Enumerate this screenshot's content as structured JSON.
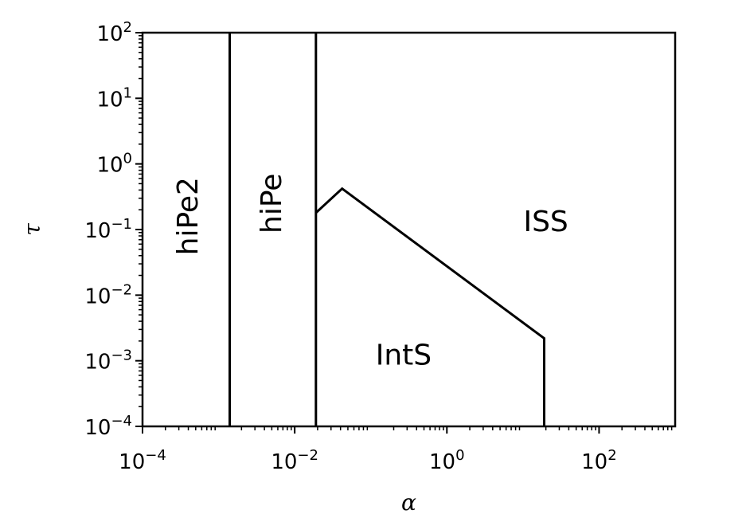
{
  "chart_data": {
    "type": "line",
    "title": "",
    "xlabel": "α",
    "ylabel": "τ",
    "xscale": "log",
    "yscale": "log",
    "xlim": [
      0.0001,
      1000
    ],
    "ylim": [
      0.0001,
      100
    ],
    "grid": false,
    "x_ticks": [
      {
        "base": "10",
        "exp": "−4",
        "value": 0.0001
      },
      {
        "base": "10",
        "exp": "−2",
        "value": 0.01
      },
      {
        "base": "10",
        "exp": "0",
        "value": 1
      },
      {
        "base": "10",
        "exp": "2",
        "value": 100
      }
    ],
    "y_ticks": [
      {
        "base": "10",
        "exp": "−4",
        "value": 0.0001
      },
      {
        "base": "10",
        "exp": "−3",
        "value": 0.001
      },
      {
        "base": "10",
        "exp": "−2",
        "value": 0.01
      },
      {
        "base": "10",
        "exp": "−1",
        "value": 0.1
      },
      {
        "base": "10",
        "exp": "0",
        "value": 1
      },
      {
        "base": "10",
        "exp": "1",
        "value": 10
      },
      {
        "base": "10",
        "exp": "2",
        "value": 100
      }
    ],
    "series": [
      {
        "points": [
          [
            0.0014,
            0.0001
          ],
          [
            0.0014,
            100
          ]
        ]
      },
      {
        "points": [
          [
            0.019,
            0.0001
          ],
          [
            0.019,
            100
          ]
        ]
      },
      {
        "points": [
          [
            0.019,
            0.18
          ],
          [
            0.042,
            0.42
          ],
          [
            19,
            0.0022
          ],
          [
            19,
            0.0001
          ]
        ]
      }
    ],
    "annotations": [
      {
        "text": "hiPe2",
        "x": 0.0004,
        "y": 0.16,
        "rotation": -90
      },
      {
        "text": "hiPe",
        "x": 0.005,
        "y": 0.25,
        "rotation": -90
      },
      {
        "text": "IntS",
        "x": 0.27,
        "y": 0.0012,
        "rotation": 0
      },
      {
        "text": "ISS",
        "x": 20,
        "y": 0.13,
        "rotation": 0
      }
    ]
  }
}
